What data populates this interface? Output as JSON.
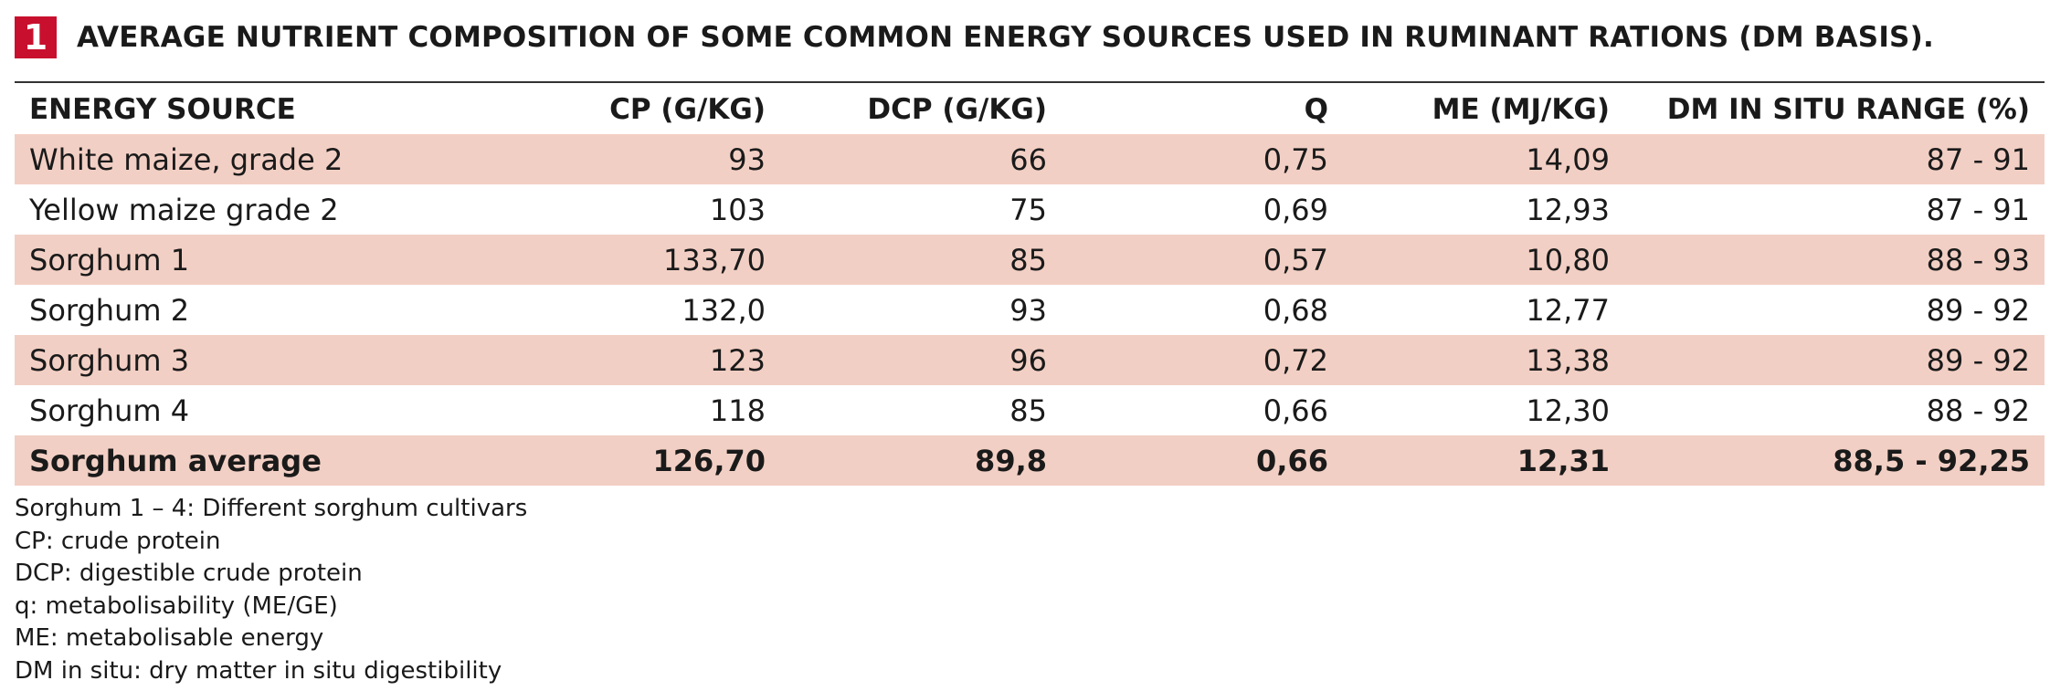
{
  "header": {
    "badge": "1",
    "title": "AVERAGE NUTRIENT COMPOSITION OF SOME COMMON ENERGY SOURCES USED IN RUMINANT RATIONS (DM BASIS)."
  },
  "table": {
    "columns": [
      "ENERGY SOURCE",
      "CP (G/KG)",
      "DCP (G/KG)",
      "Q",
      "ME (MJ/KG)",
      "DM IN SITU RANGE (%)"
    ],
    "rows": [
      [
        "White maize, grade 2",
        "93",
        "66",
        "0,75",
        "14,09",
        "87 - 91"
      ],
      [
        "Yellow maize grade 2",
        "103",
        "75",
        "0,69",
        "12,93",
        "87 - 91"
      ],
      [
        "Sorghum 1",
        "133,70",
        "85",
        "0,57",
        "10,80",
        "88 - 93"
      ],
      [
        "Sorghum 2",
        "132,0",
        "93",
        "0,68",
        "12,77",
        "89 - 92"
      ],
      [
        "Sorghum 3",
        "123",
        "96",
        "0,72",
        "13,38",
        "89 - 92"
      ],
      [
        "Sorghum 4",
        "118",
        "85",
        "0,66",
        "12,30",
        "88 - 92"
      ],
      [
        "Sorghum average",
        "126,70",
        "89,8",
        "0,66",
        "12,31",
        "88,5 - 92,25"
      ]
    ],
    "colors": {
      "shade": "#f2cfc4",
      "badge": "#c8102e"
    }
  },
  "notes": [
    "Sorghum 1 – 4: Different sorghum cultivars",
    "CP: crude protein",
    "DCP: digestible crude protein",
    "q: metabolisability (ME/GE)",
    "ME: metabolisable energy",
    "DM in situ: dry matter in situ digestibility"
  ]
}
